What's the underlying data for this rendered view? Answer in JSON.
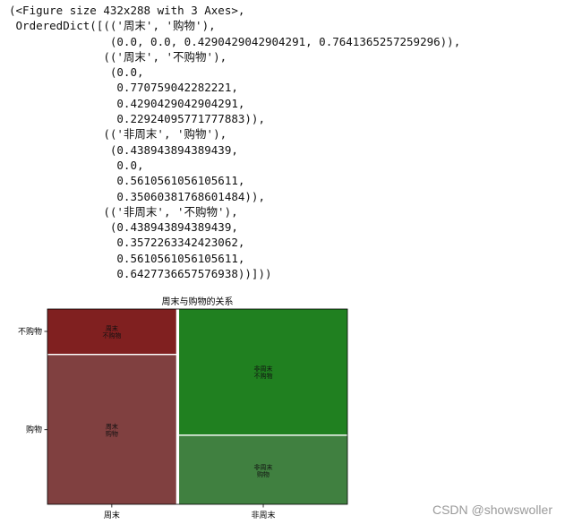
{
  "output": {
    "lines": [
      "(<Figure size 432x288 with 3 Axes>,",
      " OrderedDict([(('周末', '购物'),",
      "               (0.0, 0.0, 0.4290429042904291, 0.7641365257259296)),",
      "              (('周末', '不购物'),",
      "               (0.0,",
      "                0.770759042282221,",
      "                0.4290429042904291,",
      "                0.22924095771777883)),",
      "              (('非周末', '购物'),",
      "               (0.438943894389439,",
      "                0.0,",
      "                0.5610561056105611,",
      "                0.35060381768601484)),",
      "              (('非周末', '不购物'),",
      "               (0.438943894389439,",
      "                0.3572263342423062,",
      "                0.5610561056105611,",
      "                0.6427736657576938))]))"
    ]
  },
  "chart_data": {
    "type": "mosaic",
    "title": "周末与购物的关系",
    "x_categories": [
      "周末",
      "非周末"
    ],
    "y_categories": [
      "购物",
      "不购物"
    ],
    "cells": [
      {
        "x_cat": "周末",
        "y_cat": "购物",
        "x": 0.0,
        "y": 0.0,
        "w": 0.4290429042904291,
        "h": 0.7641365257259296,
        "label_line1": "周末",
        "label_line2": "购物",
        "color": "#804040"
      },
      {
        "x_cat": "周末",
        "y_cat": "不购物",
        "x": 0.0,
        "y": 0.770759042282221,
        "w": 0.4290429042904291,
        "h": 0.22924095771777883,
        "label_line1": "周末",
        "label_line2": "不购物",
        "color": "#802020"
      },
      {
        "x_cat": "非周末",
        "y_cat": "购物",
        "x": 0.438943894389439,
        "y": 0.0,
        "w": 0.5610561056105611,
        "h": 0.35060381768601484,
        "label_line1": "非周末",
        "label_line2": "购物",
        "color": "#408040"
      },
      {
        "x_cat": "非周末",
        "y_cat": "不购物",
        "x": 0.438943894389439,
        "y": 0.3572263342423062,
        "w": 0.5610561056105611,
        "h": 0.6427736657576938,
        "label_line1": "非周末",
        "label_line2": "不购物",
        "color": "#208020"
      }
    ],
    "xlim": [
      0,
      1
    ],
    "ylim": [
      0,
      1
    ]
  },
  "watermark": "CSDN @showswoller"
}
